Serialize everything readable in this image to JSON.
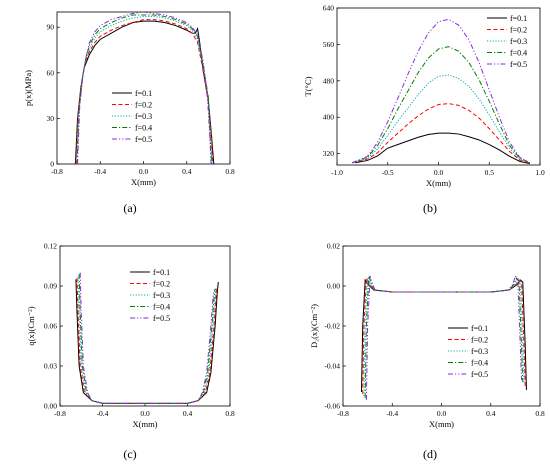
{
  "figure": {
    "colors": [
      "#000000",
      "#ff0000",
      "#00b0b0",
      "#008000",
      "#8a2be2"
    ],
    "dashes": [
      "",
      "4,2.5",
      "1.2,1.6",
      "5,2,1.2,2",
      "5,2,1.2,2,1.2,2"
    ]
  },
  "chart_data": [
    {
      "panel": "(a)",
      "type": "line",
      "xlabel": "X(mm)",
      "ylabel": "p(x)(MPa)",
      "xlim": [
        -0.8,
        0.8
      ],
      "ylim": [
        0,
        100
      ],
      "xticks": [
        "-0.8",
        "-0.4",
        "0.0",
        "0.4",
        "0.8"
      ],
      "yticks": [
        "0",
        "30",
        "60",
        "90"
      ],
      "xtick_values": [
        -0.8,
        -0.4,
        0.0,
        0.4,
        0.8
      ],
      "ytick_values": [
        0,
        30,
        60,
        90
      ],
      "legend_position": "center",
      "series": [
        {
          "name": "f=0.1",
          "x": [
            -0.63,
            -0.61,
            -0.58,
            -0.55,
            -0.5,
            -0.45,
            -0.4,
            -0.3,
            -0.2,
            -0.1,
            0.0,
            0.1,
            0.2,
            0.3,
            0.4,
            0.45,
            0.48,
            0.5,
            0.52,
            0.55,
            0.6,
            0.63,
            0.65
          ],
          "y": [
            0,
            30,
            50,
            63,
            72,
            78,
            82,
            86,
            90,
            93,
            94,
            94,
            93,
            91,
            88,
            86,
            86,
            89,
            80,
            62,
            42,
            18,
            0
          ]
        },
        {
          "name": "f=0.2",
          "x": [
            -0.625,
            -0.605,
            -0.575,
            -0.545,
            -0.5,
            -0.45,
            -0.4,
            -0.3,
            -0.2,
            -0.1,
            0.0,
            0.1,
            0.2,
            0.3,
            0.4,
            0.45,
            0.5,
            0.55,
            0.6,
            0.63,
            0.64
          ],
          "y": [
            0,
            32,
            52,
            65,
            74,
            80,
            84,
            88,
            91,
            93,
            95,
            95,
            94,
            92,
            89,
            86,
            80,
            62,
            40,
            16,
            0
          ]
        },
        {
          "name": "f=0.3",
          "x": [
            -0.62,
            -0.6,
            -0.57,
            -0.54,
            -0.5,
            -0.45,
            -0.4,
            -0.3,
            -0.2,
            -0.1,
            0.0,
            0.1,
            0.2,
            0.3,
            0.4,
            0.45,
            0.5,
            0.55,
            0.6,
            0.62,
            0.635
          ],
          "y": [
            0,
            34,
            54,
            67,
            76,
            83,
            87,
            91,
            94,
            96,
            97,
            97,
            96,
            94,
            91,
            88,
            82,
            64,
            42,
            18,
            0
          ]
        },
        {
          "name": "f=0.4",
          "x": [
            -0.615,
            -0.595,
            -0.565,
            -0.535,
            -0.5,
            -0.45,
            -0.4,
            -0.3,
            -0.2,
            -0.1,
            0.0,
            0.1,
            0.2,
            0.3,
            0.4,
            0.45,
            0.5,
            0.55,
            0.6,
            0.615,
            0.63
          ],
          "y": [
            0,
            36,
            56,
            69,
            78,
            85,
            89,
            93,
            96,
            98,
            98,
            98,
            97,
            95,
            92,
            89,
            84,
            66,
            44,
            20,
            0
          ]
        },
        {
          "name": "f=0.5",
          "x": [
            -0.61,
            -0.59,
            -0.56,
            -0.53,
            -0.5,
            -0.45,
            -0.4,
            -0.3,
            -0.2,
            -0.1,
            0.0,
            0.1,
            0.2,
            0.3,
            0.4,
            0.45,
            0.5,
            0.55,
            0.59,
            0.61,
            0.625
          ],
          "y": [
            0,
            38,
            58,
            71,
            80,
            87,
            91,
            95,
            97,
            99,
            100,
            99,
            98,
            96,
            93,
            90,
            85,
            68,
            46,
            22,
            0
          ]
        }
      ]
    },
    {
      "panel": "(b)",
      "type": "line",
      "xlabel": "X(mm)",
      "ylabel": "T(°C)",
      "xlim": [
        -1.0,
        1.0
      ],
      "ylim": [
        295,
        640
      ],
      "xticks": [
        "-1.0",
        "-0.5",
        "0.0",
        "0.5",
        "1.0"
      ],
      "yticks": [
        "320",
        "400",
        "480",
        "560",
        "640"
      ],
      "xtick_values": [
        -1.0,
        -0.5,
        0.0,
        0.5,
        1.0
      ],
      "ytick_values": [
        320,
        400,
        480,
        560,
        640
      ],
      "legend_position": "top-right",
      "series": [
        {
          "name": "f=0.1",
          "x": [
            -0.82,
            -0.7,
            -0.6,
            -0.5,
            -0.4,
            -0.3,
            -0.2,
            -0.1,
            0.0,
            0.1,
            0.2,
            0.3,
            0.4,
            0.5,
            0.6,
            0.7,
            0.8,
            0.9
          ],
          "y": [
            300,
            305,
            315,
            332,
            340,
            348,
            356,
            362,
            365,
            365,
            363,
            357,
            350,
            340,
            328,
            314,
            303,
            298
          ]
        },
        {
          "name": "f=0.2",
          "x": [
            -0.85,
            -0.7,
            -0.6,
            -0.5,
            -0.4,
            -0.3,
            -0.2,
            -0.1,
            0.0,
            0.1,
            0.2,
            0.3,
            0.4,
            0.5,
            0.6,
            0.7,
            0.8,
            0.9
          ],
          "y": [
            300,
            308,
            322,
            345,
            365,
            385,
            403,
            418,
            428,
            430,
            426,
            415,
            398,
            375,
            350,
            325,
            306,
            299
          ]
        },
        {
          "name": "f=0.3",
          "x": [
            -0.85,
            -0.7,
            -0.6,
            -0.5,
            -0.4,
            -0.3,
            -0.2,
            -0.1,
            0.0,
            0.1,
            0.2,
            0.3,
            0.4,
            0.5,
            0.6,
            0.7,
            0.8,
            0.9
          ],
          "y": [
            300,
            310,
            330,
            360,
            392,
            420,
            450,
            475,
            490,
            493,
            485,
            468,
            440,
            405,
            368,
            332,
            308,
            300
          ]
        },
        {
          "name": "f=0.4",
          "x": [
            -0.85,
            -0.7,
            -0.6,
            -0.5,
            -0.4,
            -0.3,
            -0.2,
            -0.1,
            0.0,
            0.1,
            0.2,
            0.3,
            0.4,
            0.5,
            0.6,
            0.7,
            0.8,
            0.9
          ],
          "y": [
            300,
            312,
            338,
            375,
            418,
            458,
            498,
            530,
            550,
            555,
            545,
            520,
            482,
            435,
            385,
            338,
            310,
            300
          ]
        },
        {
          "name": "f=0.5",
          "x": [
            -0.85,
            -0.7,
            -0.6,
            -0.5,
            -0.4,
            -0.3,
            -0.2,
            -0.1,
            0.0,
            0.1,
            0.2,
            0.3,
            0.4,
            0.5,
            0.6,
            0.7,
            0.8,
            0.9
          ],
          "y": [
            300,
            314,
            345,
            390,
            442,
            495,
            545,
            585,
            610,
            615,
            602,
            570,
            520,
            460,
            400,
            345,
            312,
            300
          ]
        }
      ]
    },
    {
      "panel": "(c)",
      "type": "line",
      "xlabel": "X(mm)",
      "ylabel": "q(x)(Cm⁻²)",
      "xlim": [
        -0.8,
        0.8
      ],
      "ylim": [
        0,
        0.12
      ],
      "xticks": [
        "-0.8",
        "-0.4",
        "0.0",
        "0.4",
        "0.8"
      ],
      "yticks": [
        "0.00",
        "0.03",
        "0.06",
        "0.09",
        "0.12"
      ],
      "xtick_values": [
        -0.8,
        -0.4,
        0.0,
        0.4,
        0.8
      ],
      "ytick_values": [
        0,
        0.03,
        0.06,
        0.09,
        0.12
      ],
      "legend_position": "top-right",
      "series": [
        {
          "name": "f=0.1",
          "x": [
            -0.65,
            -0.64,
            -0.62,
            -0.58,
            -0.5,
            -0.4,
            0.0,
            0.4,
            0.5,
            0.58,
            0.62,
            0.66,
            0.68,
            0.69
          ],
          "y": [
            0.095,
            0.07,
            0.03,
            0.01,
            0.004,
            0.002,
            0.002,
            0.002,
            0.004,
            0.01,
            0.025,
            0.06,
            0.085,
            0.093
          ]
        },
        {
          "name": "f=0.2",
          "x": [
            -0.64,
            -0.63,
            -0.61,
            -0.57,
            -0.5,
            -0.4,
            0.0,
            0.4,
            0.5,
            0.57,
            0.61,
            0.65,
            0.67,
            0.68
          ],
          "y": [
            0.096,
            0.07,
            0.03,
            0.01,
            0.004,
            0.002,
            0.002,
            0.002,
            0.004,
            0.01,
            0.025,
            0.06,
            0.084,
            0.09
          ]
        },
        {
          "name": "f=0.3",
          "x": [
            -0.63,
            -0.62,
            -0.6,
            -0.56,
            -0.5,
            -0.4,
            0.0,
            0.4,
            0.5,
            0.56,
            0.6,
            0.64,
            0.66,
            0.67
          ],
          "y": [
            0.097,
            0.07,
            0.03,
            0.01,
            0.004,
            0.002,
            0.002,
            0.002,
            0.004,
            0.01,
            0.025,
            0.06,
            0.083,
            0.089
          ]
        },
        {
          "name": "f=0.4",
          "x": [
            -0.62,
            -0.61,
            -0.59,
            -0.55,
            -0.5,
            -0.4,
            0.0,
            0.4,
            0.5,
            0.55,
            0.59,
            0.63,
            0.65,
            0.66
          ],
          "y": [
            0.099,
            0.07,
            0.03,
            0.01,
            0.004,
            0.002,
            0.002,
            0.002,
            0.004,
            0.01,
            0.025,
            0.06,
            0.082,
            0.088
          ]
        },
        {
          "name": "f=0.5",
          "x": [
            -0.61,
            -0.6,
            -0.58,
            -0.54,
            -0.5,
            -0.4,
            0.0,
            0.4,
            0.5,
            0.54,
            0.58,
            0.62,
            0.64,
            0.65
          ],
          "y": [
            0.1,
            0.07,
            0.03,
            0.01,
            0.004,
            0.002,
            0.002,
            0.002,
            0.004,
            0.01,
            0.025,
            0.06,
            0.081,
            0.087
          ]
        }
      ]
    },
    {
      "panel": "(d)",
      "type": "line",
      "xlabel": "X(mm)",
      "ylabel": "D₂(x)(Cm⁻²)",
      "xlim": [
        -0.8,
        0.8
      ],
      "ylim": [
        -0.06,
        0.02
      ],
      "xticks": [
        "-0.8",
        "-0.4",
        "0.0",
        "0.4",
        "0.8"
      ],
      "yticks": [
        "-0.06",
        "-0.04",
        "-0.02",
        "0.00",
        "0.02"
      ],
      "xtick_values": [
        -0.8,
        -0.4,
        0.0,
        0.4,
        0.8
      ],
      "ytick_values": [
        -0.06,
        -0.04,
        -0.02,
        0.0,
        0.02
      ],
      "legend_position": "bottom-right",
      "series": [
        {
          "name": "f=0.1",
          "x": [
            -0.65,
            -0.64,
            -0.62,
            -0.6,
            -0.55,
            -0.4,
            0.0,
            0.4,
            0.55,
            0.62,
            0.64,
            0.66,
            0.68,
            0.69
          ],
          "y": [
            -0.053,
            -0.02,
            0.003,
            0.001,
            -0.002,
            -0.003,
            -0.003,
            -0.003,
            -0.002,
            0.001,
            0.003,
            0.002,
            -0.03,
            -0.052
          ]
        },
        {
          "name": "f=0.2",
          "x": [
            -0.64,
            -0.63,
            -0.61,
            -0.59,
            -0.55,
            -0.4,
            0.0,
            0.4,
            0.55,
            0.61,
            0.63,
            0.65,
            0.67,
            0.68
          ],
          "y": [
            -0.054,
            -0.02,
            0.004,
            0.001,
            -0.002,
            -0.003,
            -0.003,
            -0.003,
            -0.002,
            0.001,
            0.003,
            0.002,
            -0.03,
            -0.05
          ]
        },
        {
          "name": "f=0.3",
          "x": [
            -0.63,
            -0.62,
            -0.6,
            -0.58,
            -0.55,
            -0.4,
            0.0,
            0.4,
            0.55,
            0.6,
            0.62,
            0.64,
            0.66,
            0.67
          ],
          "y": [
            -0.055,
            -0.02,
            0.004,
            0.001,
            -0.002,
            -0.003,
            -0.003,
            -0.003,
            -0.002,
            0.001,
            0.004,
            0.002,
            -0.03,
            -0.049
          ]
        },
        {
          "name": "f=0.4",
          "x": [
            -0.62,
            -0.61,
            -0.59,
            -0.57,
            -0.55,
            -0.4,
            0.0,
            0.4,
            0.55,
            0.59,
            0.61,
            0.63,
            0.65,
            0.66
          ],
          "y": [
            -0.056,
            -0.02,
            0.005,
            0.001,
            -0.002,
            -0.003,
            -0.003,
            -0.003,
            -0.002,
            0.001,
            0.004,
            0.002,
            -0.03,
            -0.048
          ]
        },
        {
          "name": "f=0.5",
          "x": [
            -0.61,
            -0.6,
            -0.58,
            -0.56,
            -0.54,
            -0.4,
            0.0,
            0.4,
            0.54,
            0.58,
            0.6,
            0.62,
            0.64,
            0.65
          ],
          "y": [
            -0.057,
            -0.02,
            0.005,
            0.001,
            -0.002,
            -0.003,
            -0.003,
            -0.003,
            -0.002,
            0.001,
            0.005,
            0.002,
            -0.03,
            -0.047
          ]
        }
      ]
    }
  ]
}
